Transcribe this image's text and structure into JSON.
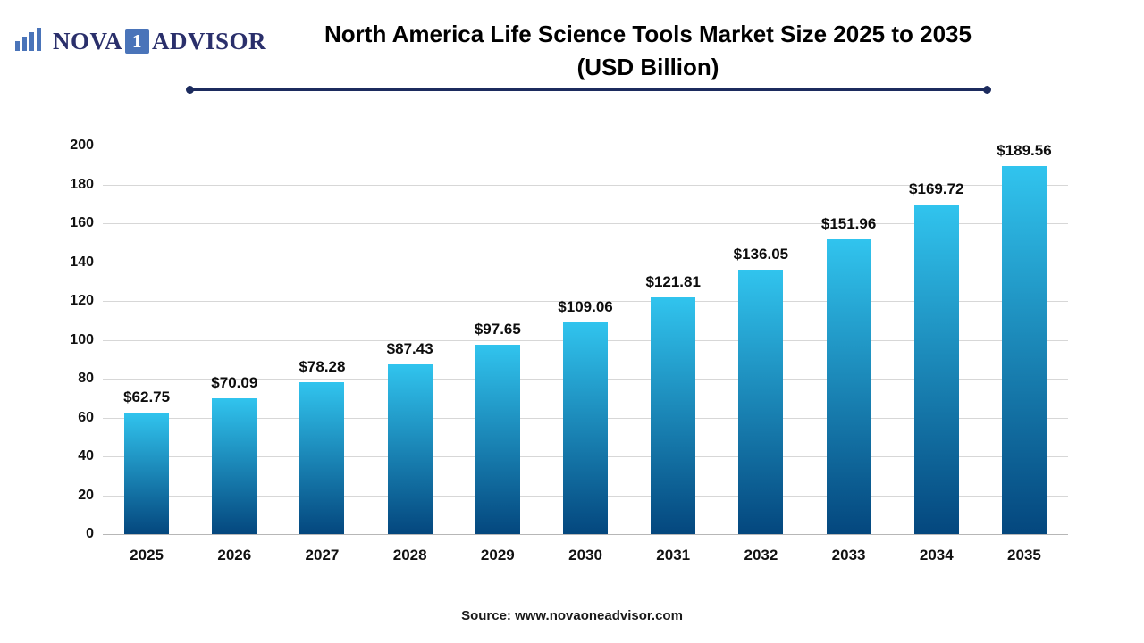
{
  "logo": {
    "icon": "bar-chart-icon",
    "part1": "NOVA",
    "part2": "1",
    "part3": "ADVISOR"
  },
  "header": {
    "title_line1": "North America Life Science Tools Market Size 2025 to 2035",
    "title_line2": "(USD Billion)"
  },
  "chart_data": {
    "type": "bar",
    "title": "North America Life Science Tools Market Size 2025 to 2035 (USD Billion)",
    "categories": [
      "2025",
      "2026",
      "2027",
      "2028",
      "2029",
      "2030",
      "2031",
      "2032",
      "2033",
      "2034",
      "2035"
    ],
    "values": [
      62.75,
      70.09,
      78.28,
      87.43,
      97.65,
      109.06,
      121.81,
      136.05,
      151.96,
      169.72,
      189.56
    ],
    "value_labels": [
      "$62.75",
      "$70.09",
      "$78.28",
      "$87.43",
      "$97.65",
      "$109.06",
      "$121.81",
      "$136.05",
      "$151.96",
      "$169.72",
      "$189.56"
    ],
    "xlabel": "",
    "ylabel": "",
    "ylim": [
      0,
      200
    ],
    "yticks": [
      0,
      20,
      40,
      60,
      80,
      100,
      120,
      140,
      160,
      180,
      200
    ],
    "grid": true,
    "legend": "none",
    "bar_gradient_top": "#31c4ee",
    "bar_gradient_bottom": "#04477e",
    "accent_color": "#1c2b5e"
  },
  "footer": {
    "source": "Source: www.novaoneadvisor.com"
  }
}
